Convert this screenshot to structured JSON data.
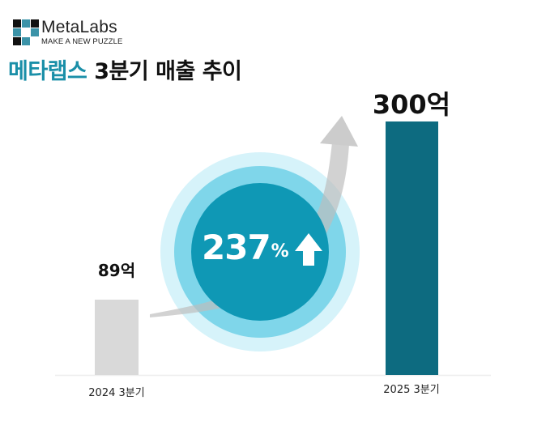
{
  "brand": {
    "name": "MetaLabs",
    "tagline": "MAKE A NEW PUZZLE",
    "grid_colors": [
      "#111111",
      "#3b93a8",
      "#111111",
      "#3b93a8",
      "#ffffff",
      "#3b93a8",
      "#111111",
      "#3b93a8",
      "#ffffff"
    ]
  },
  "title": {
    "accent": "메타랩스",
    "rest": " 3분기 매출 추이"
  },
  "growth": {
    "value": "237",
    "unit": "%",
    "direction": "up-arrow-icon"
  },
  "colors": {
    "accent": "#1a8fa8",
    "bar_prev": "#d9d9d9",
    "bar_curr": "#0d6b80",
    "circle_inner": "#0f98b5",
    "circle_middle": "#7fd6ea",
    "circle_outer": "#d6f3fa",
    "swoosh": "#c4c4c4"
  },
  "chart_data": {
    "type": "bar",
    "title": "메타랩스 3분기 매출 추이",
    "categories": [
      "2024 3분기",
      "2025 3분기"
    ],
    "values": [
      89,
      300
    ],
    "value_labels": [
      "89억",
      "300억"
    ],
    "unit": "억",
    "xlabel": "",
    "ylabel": "",
    "ylim": [
      0,
      320
    ],
    "grid": false,
    "legend": "none",
    "annotations": [
      "237% ↑ growth"
    ]
  },
  "bars": [
    {
      "category": "2024 3분기",
      "label": "89억"
    },
    {
      "category": "2025 3분기",
      "label": "300억"
    }
  ]
}
